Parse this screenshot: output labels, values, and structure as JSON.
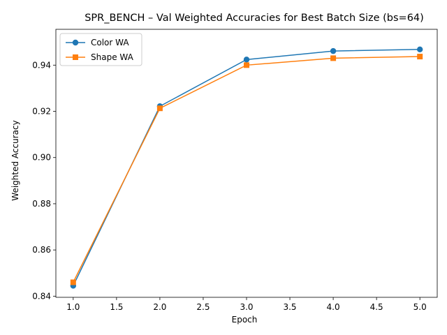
{
  "chart_data": {
    "type": "line",
    "title": "SPR_BENCH – Val Weighted Accuracies for Best Batch Size (bs=64)",
    "xlabel": "Epoch",
    "ylabel": "Weighted Accuracy",
    "xlim": [
      0.8,
      5.2
    ],
    "ylim": [
      0.8395,
      0.9555
    ],
    "xticks": [
      1.0,
      1.5,
      2.0,
      2.5,
      3.0,
      3.5,
      4.0,
      4.5,
      5.0
    ],
    "xtick_labels": [
      "1.0",
      "1.5",
      "2.0",
      "2.5",
      "3.0",
      "3.5",
      "4.0",
      "4.5",
      "5.0"
    ],
    "yticks": [
      0.84,
      0.86,
      0.88,
      0.9,
      0.92,
      0.94
    ],
    "ytick_labels": [
      "0.84",
      "0.86",
      "0.88",
      "0.90",
      "0.92",
      "0.94"
    ],
    "grid": false,
    "legend_position": "upper-left",
    "x": [
      1,
      2,
      3,
      4,
      5
    ],
    "series": [
      {
        "name": "Color WA",
        "marker": "circle",
        "color": "#1f77b4",
        "values": [
          0.8445,
          0.9222,
          0.9424,
          0.9461,
          0.9468
        ]
      },
      {
        "name": "Shape WA",
        "marker": "square",
        "color": "#ff7f0e",
        "values": [
          0.846,
          0.9213,
          0.94,
          0.943,
          0.9437
        ]
      }
    ]
  }
}
